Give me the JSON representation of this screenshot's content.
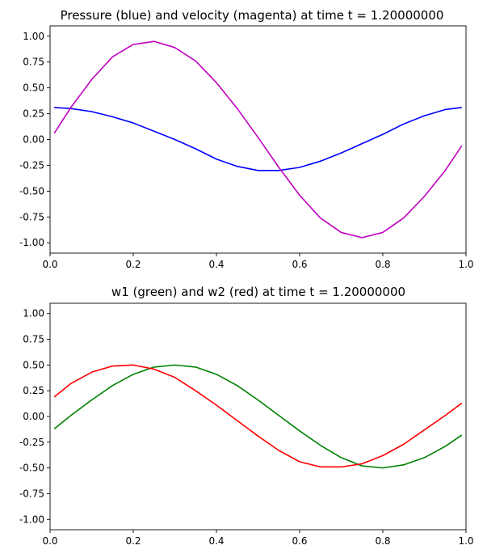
{
  "chart_data": [
    {
      "type": "line",
      "title": "Pressure (blue) and velocity (magenta) at time t =     1.20000000",
      "xlabel": "",
      "ylabel": "",
      "xlim": [
        0,
        1
      ],
      "ylim": [
        -1.1,
        1.1
      ],
      "xticks": [
        "0.0",
        "0.2",
        "0.4",
        "0.6",
        "0.8",
        "1.0"
      ],
      "yticks": [
        "-1.00",
        "-0.75",
        "-0.50",
        "-0.25",
        "0.00",
        "0.25",
        "0.50",
        "0.75",
        "1.00"
      ],
      "grid": false,
      "series": [
        {
          "color": "#0000ff",
          "x": [
            0.01,
            0.05,
            0.1,
            0.15,
            0.2,
            0.25,
            0.3,
            0.35,
            0.4,
            0.45,
            0.5,
            0.55,
            0.6,
            0.65,
            0.7,
            0.75,
            0.8,
            0.85,
            0.9,
            0.95,
            0.99
          ],
          "y": [
            0.31,
            0.3,
            0.27,
            0.22,
            0.16,
            0.08,
            0.0,
            -0.09,
            -0.19,
            -0.26,
            -0.3,
            -0.3,
            -0.27,
            -0.21,
            -0.13,
            -0.04,
            0.05,
            0.15,
            0.23,
            0.29,
            0.31
          ]
        },
        {
          "color": "#bf00bf",
          "x": [
            0.01,
            0.05,
            0.1,
            0.15,
            0.2,
            0.25,
            0.3,
            0.35,
            0.4,
            0.45,
            0.5,
            0.55,
            0.6,
            0.65,
            0.7,
            0.75,
            0.8,
            0.85,
            0.9,
            0.95,
            0.99
          ],
          "y": [
            0.06,
            0.31,
            0.58,
            0.8,
            0.92,
            0.95,
            0.89,
            0.76,
            0.55,
            0.3,
            0.02,
            -0.27,
            -0.54,
            -0.76,
            -0.9,
            -0.95,
            -0.9,
            -0.76,
            -0.55,
            -0.3,
            -0.06
          ]
        }
      ]
    },
    {
      "type": "line",
      "title": "w1 (green) and w2 (red) at time t =     1.20000000",
      "xlabel": "",
      "ylabel": "",
      "xlim": [
        0,
        1
      ],
      "ylim": [
        -1.1,
        1.1
      ],
      "xticks": [
        "0.0",
        "0.2",
        "0.4",
        "0.6",
        "0.8",
        "1.0"
      ],
      "yticks": [
        "-1.00",
        "-0.75",
        "-0.50",
        "-0.25",
        "0.00",
        "0.25",
        "0.50",
        "0.75",
        "1.00"
      ],
      "grid": false,
      "series": [
        {
          "color": "#008000",
          "x": [
            0.01,
            0.05,
            0.1,
            0.15,
            0.2,
            0.25,
            0.3,
            0.35,
            0.4,
            0.45,
            0.5,
            0.55,
            0.6,
            0.65,
            0.7,
            0.75,
            0.8,
            0.85,
            0.9,
            0.95,
            0.99
          ],
          "y": [
            -0.12,
            0.01,
            0.16,
            0.3,
            0.41,
            0.48,
            0.5,
            0.48,
            0.41,
            0.3,
            0.16,
            0.01,
            -0.14,
            -0.28,
            -0.4,
            -0.48,
            -0.5,
            -0.47,
            -0.4,
            -0.29,
            -0.18
          ]
        },
        {
          "color": "#ff0000",
          "x": [
            0.01,
            0.05,
            0.1,
            0.15,
            0.2,
            0.25,
            0.3,
            0.35,
            0.4,
            0.45,
            0.5,
            0.55,
            0.6,
            0.65,
            0.7,
            0.75,
            0.8,
            0.85,
            0.9,
            0.95,
            0.99
          ],
          "y": [
            0.19,
            0.32,
            0.43,
            0.49,
            0.5,
            0.46,
            0.38,
            0.25,
            0.11,
            -0.04,
            -0.19,
            -0.33,
            -0.44,
            -0.49,
            -0.49,
            -0.46,
            -0.38,
            -0.27,
            -0.13,
            0.01,
            0.13
          ]
        }
      ]
    }
  ]
}
